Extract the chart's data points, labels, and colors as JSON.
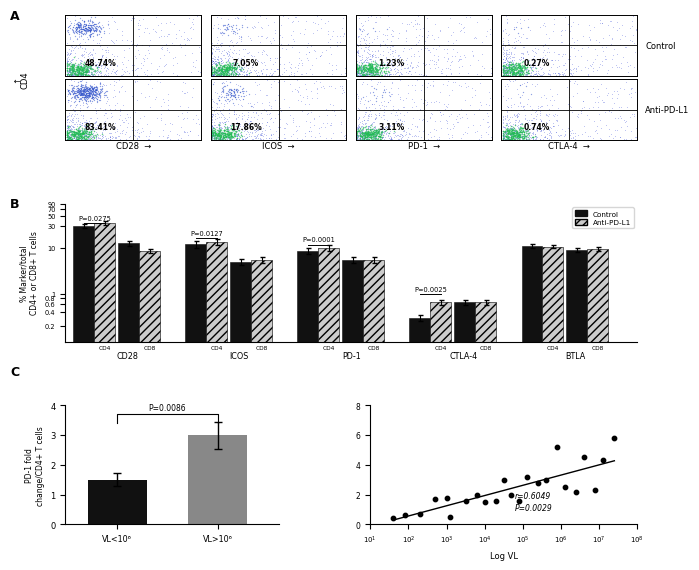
{
  "panel_A": {
    "cols": [
      "CD28",
      "ICOS",
      "PD-1",
      "CTLA-4"
    ],
    "values": [
      [
        "48.74%",
        "7.05%",
        "1.23%",
        "0.27%"
      ],
      [
        "83.41%",
        "17.86%",
        "3.11%",
        "0.74%"
      ]
    ],
    "row_labels": [
      "Control",
      "Anti-PD-L1"
    ],
    "cd4_label": "CD4"
  },
  "panel_B": {
    "groups": [
      "CD28",
      "ICOS",
      "PD-1",
      "CTLA-4",
      "BTLA"
    ],
    "ctrl_vals": [
      29.5,
      12.5,
      12.0,
      5.0,
      8.5,
      5.5,
      0.3,
      0.65,
      11.0,
      9.0
    ],
    "apd_vals": [
      35.0,
      8.5,
      13.5,
      5.5,
      10.0,
      5.5,
      0.65,
      0.65,
      10.5,
      9.5
    ],
    "ctrl_errs": [
      2.5,
      1.5,
      2.0,
      0.8,
      1.2,
      0.8,
      0.05,
      0.08,
      1.2,
      0.9
    ],
    "apd_errs": [
      4.0,
      1.0,
      2.0,
      0.8,
      1.5,
      0.8,
      0.08,
      0.08,
      0.9,
      0.9
    ],
    "pvalues": {
      "CD28": [
        "P=0.0275",
        0
      ],
      "ICOS": [
        "P=0.0127",
        2
      ],
      "PD-1": [
        "P=0.0001",
        4
      ],
      "CTLA-4": [
        "P=0.0025",
        6
      ]
    },
    "ylabel": "% Marker/total\nCD4+ or CD8+ T cells",
    "legend_ctrl": "Control",
    "legend_apd": "Anti-PD-L1"
  },
  "panel_C_bar": {
    "cats": [
      "VL<10⁶",
      "VL>10⁶"
    ],
    "vals": [
      1.5,
      3.0
    ],
    "errs": [
      0.22,
      0.45
    ],
    "colors": [
      "#111111",
      "#888888"
    ],
    "ylabel": "PD-1 fold\nchange/CD4+ T cells",
    "pvalue": "P=0.0086",
    "ylim": [
      0,
      4
    ]
  },
  "panel_C_scatter": {
    "x": [
      1.6,
      1.9,
      2.3,
      2.7,
      3.0,
      3.1,
      3.5,
      3.8,
      4.0,
      4.3,
      4.5,
      4.7,
      4.9,
      5.1,
      5.4,
      5.6,
      5.9,
      6.1,
      6.4,
      6.6,
      6.9,
      7.1,
      7.4
    ],
    "y": [
      0.4,
      0.6,
      0.7,
      1.7,
      1.8,
      0.5,
      1.6,
      2.0,
      1.5,
      1.6,
      3.0,
      2.0,
      1.6,
      3.2,
      2.8,
      3.0,
      5.2,
      2.5,
      2.2,
      4.5,
      2.3,
      4.3,
      5.8
    ],
    "xlabel": "Log VL",
    "r_value": "r=0.6049",
    "p_value": "P=0.0029",
    "xlim": [
      1,
      8
    ],
    "ylim": [
      0,
      8
    ],
    "yticks": [
      0,
      2,
      4,
      6,
      8
    ]
  },
  "bg_color": "#ffffff"
}
